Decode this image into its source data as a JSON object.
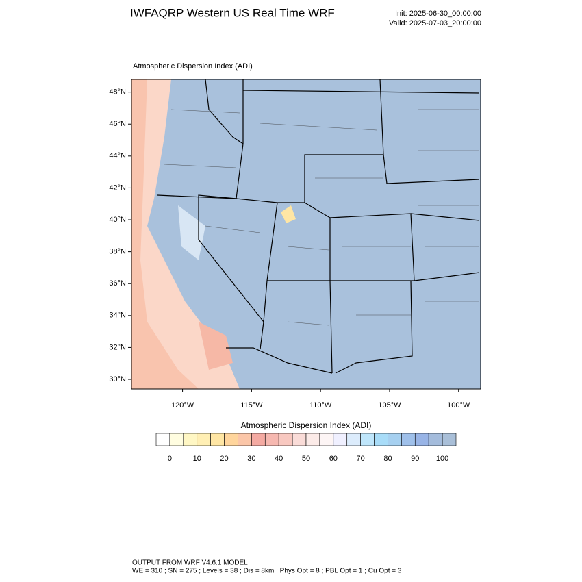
{
  "header": {
    "title": "IWFAQRP Western US Real Time WRF",
    "init": "Init: 2025-06-30_00:00:00",
    "valid": "Valid: 2025-07-03_20:00:00"
  },
  "map": {
    "subtitle": "Atmospheric Dispersion Index   (ADI)",
    "latlim": [
      29.4,
      48.8
    ],
    "lonlim": [
      -123.7,
      -98.4
    ],
    "latticks": [
      {
        "value": 48,
        "label": "48°N"
      },
      {
        "value": 46,
        "label": "46°N"
      },
      {
        "value": 44,
        "label": "44°N"
      },
      {
        "value": 42,
        "label": "42°N"
      },
      {
        "value": 40,
        "label": "40°N"
      },
      {
        "value": 38,
        "label": "38°N"
      },
      {
        "value": 36,
        "label": "36°N"
      },
      {
        "value": 34,
        "label": "34°N"
      },
      {
        "value": 32,
        "label": "32°N"
      },
      {
        "value": 30,
        "label": "30°N"
      }
    ],
    "lonticks": [
      {
        "value": -120,
        "label": "120°W"
      },
      {
        "value": -115,
        "label": "115°W"
      },
      {
        "value": -110,
        "label": "110°W"
      },
      {
        "value": -105,
        "label": "105°W"
      },
      {
        "value": -100,
        "label": "100°W"
      }
    ]
  },
  "colorbar": {
    "title": "Atmospheric Dispersion Index  (ADI)",
    "range": [
      -5,
      105
    ],
    "ticks": [
      0,
      10,
      20,
      30,
      40,
      50,
      60,
      70,
      80,
      90,
      100
    ],
    "colors": [
      "#ffffff",
      "#fffde0",
      "#fff7c4",
      "#ffefb4",
      "#ffe6a4",
      "#ffd59c",
      "#fbc6a8",
      "#f4aaa2",
      "#f6b8b0",
      "#f8c8c0",
      "#fadcd8",
      "#fcebe8",
      "#fdf5f5",
      "#f0f0ff",
      "#dcecfc",
      "#bfe6fb",
      "#a8dcf8",
      "#a6d0f0",
      "#9fc0ea",
      "#98b4e6",
      "#a4bcdc",
      "#a9bfd8"
    ]
  },
  "footer": {
    "line1": "OUTPUT FROM WRF V4.6.1 MODEL",
    "line2": "WE = 310 ; SN = 275 ; Levels = 38 ; Dis = 8km ; Phys Opt = 8 ; PBL Opt = 1 ; Cu Opt = 3"
  }
}
